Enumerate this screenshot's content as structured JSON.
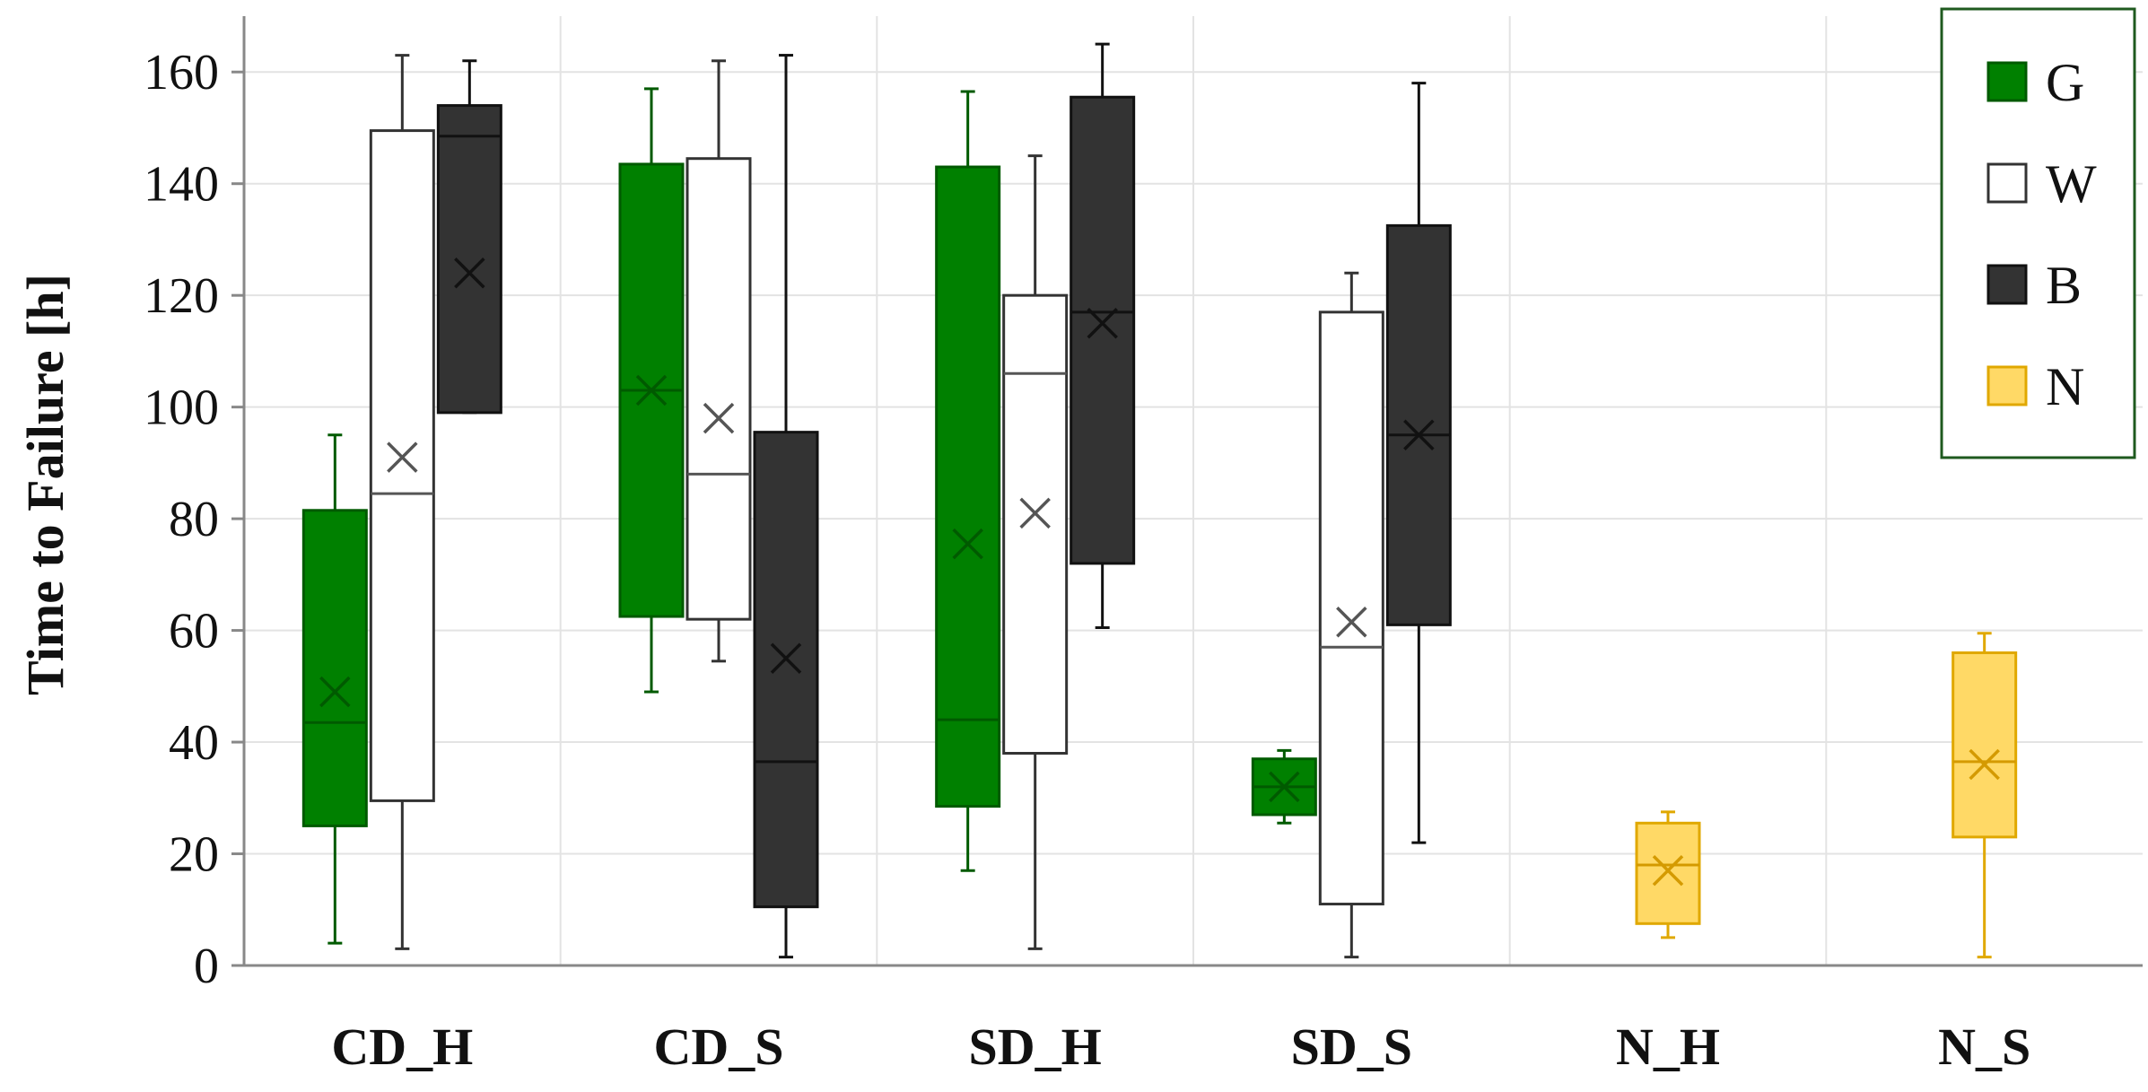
{
  "chart_data": {
    "type": "box",
    "title": "",
    "xlabel": "",
    "ylabel": "Time to Failure [h]",
    "ylim": [
      0,
      170
    ],
    "yticks": [
      0,
      20,
      40,
      60,
      80,
      100,
      120,
      140,
      160
    ],
    "grid": true,
    "legend_position": "top-right",
    "categories": [
      "CD_H",
      "CD_S",
      "SD_H",
      "SD_S",
      "N_H",
      "N_S"
    ],
    "series": [
      {
        "name": "G",
        "fill": "#008000",
        "stroke": "#005a00",
        "marker": "#005a00",
        "boxes": [
          {
            "category": "CD_H",
            "min": 4,
            "q1": 25,
            "median": 43.5,
            "q3": 81.5,
            "max": 95,
            "mean": 49
          },
          {
            "category": "CD_S",
            "min": 49,
            "q1": 62.5,
            "median": 103,
            "q3": 143.5,
            "max": 157,
            "mean": 103
          },
          {
            "category": "SD_H",
            "min": 17,
            "q1": 28.5,
            "median": 44,
            "q3": 143,
            "max": 156.5,
            "mean": 75.5
          },
          {
            "category": "SD_S",
            "min": 25.5,
            "q1": 27,
            "median": 32,
            "q3": 37,
            "max": 38.5,
            "mean": 32
          }
        ]
      },
      {
        "name": "W",
        "fill": "#ffffff",
        "stroke": "#333333",
        "marker": "#555555",
        "boxes": [
          {
            "category": "CD_H",
            "min": 3,
            "q1": 29.5,
            "median": 84.5,
            "q3": 149.5,
            "max": 163,
            "mean": 91
          },
          {
            "category": "CD_S",
            "min": 54.5,
            "q1": 62,
            "median": 88,
            "q3": 144.5,
            "max": 162,
            "mean": 98
          },
          {
            "category": "SD_H",
            "min": 3,
            "q1": 38,
            "median": 106,
            "q3": 120,
            "max": 145,
            "mean": 81
          },
          {
            "category": "SD_S",
            "min": 1.5,
            "q1": 11,
            "median": 57,
            "q3": 117,
            "max": 124,
            "mean": 61.5
          }
        ]
      },
      {
        "name": "B",
        "fill": "#333333",
        "stroke": "#111111",
        "marker": "#111111",
        "boxes": [
          {
            "category": "CD_H",
            "min": 99,
            "q1": 99,
            "median": 148.5,
            "q3": 154,
            "max": 162,
            "mean": 124
          },
          {
            "category": "CD_S",
            "min": 1.5,
            "q1": 10.5,
            "median": 36.5,
            "q3": 95.5,
            "max": 163,
            "mean": 55
          },
          {
            "category": "SD_H",
            "min": 60.5,
            "q1": 72,
            "median": 117,
            "q3": 155.5,
            "max": 165,
            "mean": 115
          },
          {
            "category": "SD_S",
            "min": 22,
            "q1": 61,
            "median": 95,
            "q3": 132.5,
            "max": 158,
            "mean": 95
          }
        ]
      },
      {
        "name": "N",
        "fill": "#ffd966",
        "stroke": "#e0a800",
        "marker": "#d49a00",
        "boxes": [
          {
            "category": "N_H",
            "min": 5,
            "q1": 7.5,
            "median": 18,
            "q3": 25.5,
            "max": 27.5,
            "mean": 17
          },
          {
            "category": "N_S",
            "min": 1.5,
            "q1": 23,
            "median": 36.5,
            "q3": 56,
            "max": 59.5,
            "mean": 36
          }
        ]
      }
    ]
  }
}
